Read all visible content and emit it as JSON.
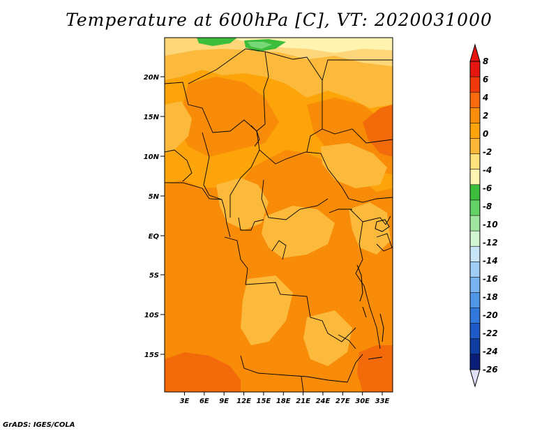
{
  "title": "Temperature at 600hPa [C], VT: 2020031000",
  "credit": "GrADS: IGES/COLA",
  "axes": {
    "y_ticks": [
      "20N",
      "15N",
      "10N",
      "5N",
      "EQ",
      "5S",
      "10S",
      "15S"
    ],
    "x_ticks": [
      "3E",
      "6E",
      "9E",
      "12E",
      "15E",
      "18E",
      "21E",
      "24E",
      "27E",
      "30E",
      "33E"
    ]
  },
  "colorbar": {
    "labels": [
      "8",
      "6",
      "4",
      "2",
      "0",
      "-2",
      "-4",
      "-6",
      "-8",
      "-10",
      "-12",
      "-14",
      "-16",
      "-18",
      "-20",
      "-22",
      "-24",
      "-26"
    ],
    "colors": [
      "#e5160f",
      "#f03a0c",
      "#f76b0d",
      "#fa8e0a",
      "#fca40a",
      "#fbb838",
      "#ffe17d",
      "#fff5b0",
      "#3cbe3c",
      "#64d264",
      "#a0e6a0",
      "#d2f5d2",
      "#c8e6f8",
      "#a0cdf5",
      "#78b4f0",
      "#5096e6",
      "#3278dc",
      "#1e5ac8",
      "#0f3ca0",
      "#0a1e78"
    ],
    "over_color": "#e5160f",
    "under_color": "#e0e0f8"
  },
  "map_colors": {
    "base": "#fca40a",
    "warm": "#f88b08",
    "hot": "#f36a0a",
    "cool": "#fbba3c",
    "cooler": "#fdd779",
    "pale": "#fff3b0",
    "green": "#3cbe3c",
    "lightgreen": "#78d878"
  }
}
